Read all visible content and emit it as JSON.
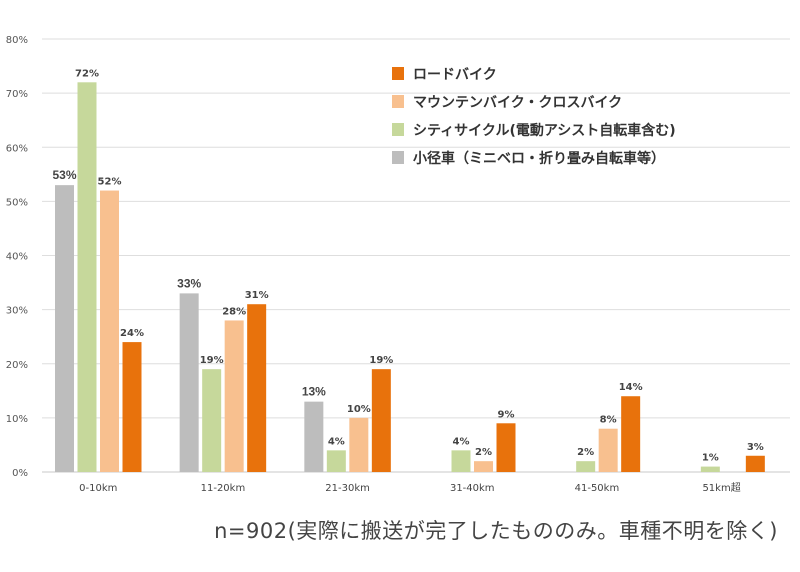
{
  "chart_data": {
    "type": "bar",
    "title": "",
    "xlabel": "",
    "ylabel": "",
    "ylim": [
      0,
      80
    ],
    "yticks": [
      "0%",
      "10%",
      "20%",
      "30%",
      "40%",
      "50%",
      "60%",
      "70%",
      "80%"
    ],
    "grid": true,
    "legend_position": "top-right",
    "categories": [
      "0-10km",
      "11-20km",
      "21-30km",
      "31-40km",
      "41-50km",
      "51km超"
    ],
    "series": [
      {
        "name": "小径車（ミニベロ・折り畳み自転車等）",
        "color": "#bdbdbd",
        "values": [
          53,
          33,
          13,
          0,
          0,
          0
        ],
        "labels": [
          "53%",
          "33%",
          "13%",
          "",
          "",
          ""
        ]
      },
      {
        "name": "シティサイクル(電動アシスト自転車含む)",
        "color": "#c6d89b",
        "values": [
          72,
          19,
          4,
          4,
          2,
          1
        ],
        "labels": [
          "72%",
          "19%",
          "4%",
          "4%",
          "2%",
          "1%"
        ]
      },
      {
        "name": "マウンテンバイク・クロスバイク",
        "color": "#f8c08f",
        "values": [
          52,
          28,
          10,
          2,
          8,
          0
        ],
        "labels": [
          "52%",
          "28%",
          "10%",
          "2%",
          "8%",
          ""
        ]
      },
      {
        "name": "ロードバイク",
        "color": "#e8720c",
        "values": [
          24,
          31,
          19,
          9,
          14,
          3
        ],
        "labels": [
          "24%",
          "31%",
          "19%",
          "9%",
          "14%",
          "3%"
        ]
      }
    ],
    "legend_order": [
      3,
      2,
      1,
      0
    ]
  },
  "footnote": "n=902(実際に搬送が完了したもののみ。車種不明を除く)"
}
